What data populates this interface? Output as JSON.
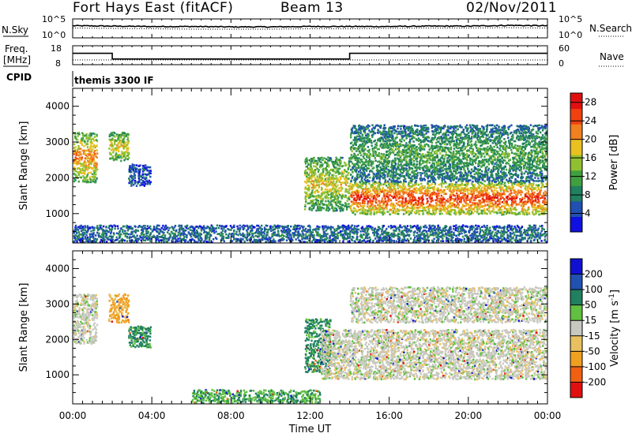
{
  "header": {
    "station": "Fort Hays East (fitACF)",
    "beam": "Beam 13",
    "date": "02/Nov/2011"
  },
  "top_panels": {
    "nsky_label": "N.Sky",
    "nsearch_label": "N.Search",
    "nsky_ticks": [
      "10^5",
      "10^0"
    ],
    "nsearch_ticks": [
      "10^5",
      "10^0"
    ],
    "freq_label_line1": "Freq.",
    "freq_label_line2": "[MHz]",
    "freq_ticks": [
      "18",
      "8"
    ],
    "nave_label": "Nave",
    "nave_ticks": [
      "60",
      "0"
    ],
    "cpid_label": "CPID",
    "cpid_value": "themis 3300 IF"
  },
  "chart_data": [
    {
      "type": "line",
      "title": "",
      "series": [
        {
          "name": "N.Sky",
          "x": [
            0,
            2,
            4,
            6,
            8,
            10,
            12,
            14,
            16,
            18,
            20,
            22,
            24
          ],
          "values": [
            3.2,
            3.1,
            3.0,
            3.0,
            2.9,
            2.9,
            3.0,
            3.0,
            3.0,
            3.1,
            3.1,
            3.3,
            3.2
          ]
        },
        {
          "name": "N.Search",
          "x": [
            0,
            2,
            4,
            6,
            8,
            10,
            12,
            14,
            16,
            18,
            20,
            22,
            24
          ],
          "values": [
            2.6,
            2.5,
            2.4,
            2.3,
            2.3,
            2.3,
            2.4,
            2.4,
            2.5,
            2.6,
            2.6,
            2.7,
            2.6
          ]
        }
      ],
      "ylim": [
        0,
        5
      ],
      "yscale": "log10",
      "xlim": [
        0,
        24
      ]
    },
    {
      "type": "line",
      "series": [
        {
          "name": "Freq.",
          "x": [
            0,
            2,
            2,
            14,
            14,
            24
          ],
          "values": [
            14,
            14,
            11,
            11,
            14,
            14
          ]
        },
        {
          "name": "Nave",
          "x": [
            0,
            24
          ],
          "values": [
            15,
            15
          ]
        }
      ],
      "ylim_freq": [
        8,
        18
      ],
      "ylim_nave": [
        0,
        60
      ],
      "xlim": [
        0,
        24
      ]
    },
    {
      "type": "heatmap",
      "title": "",
      "xlabel": "",
      "ylabel": "Slant Range [km]",
      "ylim": [
        180,
        4500
      ],
      "xlim": [
        0,
        24
      ],
      "yticks": [
        1000,
        2000,
        3000,
        4000
      ],
      "colorbar_label": "Power [dB]",
      "colorbar_ticks": [
        4,
        8,
        12,
        16,
        20,
        24,
        28
      ],
      "colorbar_range": [
        0,
        30
      ],
      "colors": [
        "#1010e0",
        "#2050b0",
        "#208060",
        "#40a040",
        "#90c030",
        "#e8c020",
        "#f08020",
        "#f04010",
        "#e01010"
      ],
      "echo_regions": [
        {
          "t0": 0.0,
          "t1": 1.2,
          "r0": 1900,
          "r1": 3300,
          "power": 20
        },
        {
          "t0": 1.8,
          "t1": 2.8,
          "r0": 2500,
          "r1": 3300,
          "power": 16
        },
        {
          "t0": 2.8,
          "t1": 3.9,
          "r0": 1800,
          "r1": 2400,
          "power": 4
        },
        {
          "t0": 0.0,
          "t1": 24.0,
          "r0": 200,
          "r1": 700,
          "power": 6
        },
        {
          "t0": 11.7,
          "t1": 14.0,
          "r0": 1100,
          "r1": 2600,
          "power": 16
        },
        {
          "t0": 14.0,
          "t1": 24.0,
          "r0": 1000,
          "r1": 1900,
          "power": 24
        },
        {
          "t0": 14.0,
          "t1": 24.0,
          "r0": 1900,
          "r1": 3500,
          "power": 10
        }
      ]
    },
    {
      "type": "heatmap",
      "title": "",
      "xlabel": "Time UT",
      "ylabel": "Slant Range [km]",
      "ylim": [
        180,
        4500
      ],
      "xlim": [
        0,
        24
      ],
      "yticks": [
        1000,
        2000,
        3000,
        4000
      ],
      "xticks": [
        "00:00",
        "04:00",
        "08:00",
        "12:00",
        "16:00",
        "20:00",
        "00:00"
      ],
      "colorbar_label": "Velocity [m s^-1]",
      "colorbar_label_base": "Velocity [",
      "colorbar_label_unit": "m s",
      "colorbar_label_exp": "-1",
      "colorbar_label_end": "]",
      "colorbar_ticks": [
        "200",
        "100",
        "50",
        "15",
        "-15",
        "-50",
        "-100",
        "-200"
      ],
      "colors": [
        "#e01010",
        "#f06010",
        "#f0a020",
        "#e8c060",
        "#c8c8c0",
        "#60c040",
        "#208060",
        "#2050b0",
        "#1010d0"
      ],
      "echo_regions": [
        {
          "t0": 0.0,
          "t1": 1.2,
          "r0": 1900,
          "r1": 3300,
          "velocity": 0
        },
        {
          "t0": 1.8,
          "t1": 2.8,
          "r0": 2500,
          "r1": 3300,
          "velocity": -40
        },
        {
          "t0": 2.8,
          "t1": 3.9,
          "r0": 1800,
          "r1": 2400,
          "velocity": 40
        },
        {
          "t0": 6.0,
          "t1": 12.5,
          "r0": 200,
          "r1": 600,
          "velocity": 30
        },
        {
          "t0": 11.7,
          "t1": 13.0,
          "r0": 1100,
          "r1": 2600,
          "velocity": 40
        },
        {
          "t0": 12.5,
          "t1": 24.0,
          "r0": 900,
          "r1": 2300,
          "velocity": 0
        },
        {
          "t0": 14.0,
          "t1": 24.0,
          "r0": 2500,
          "r1": 3500,
          "velocity": 0
        }
      ]
    }
  ]
}
